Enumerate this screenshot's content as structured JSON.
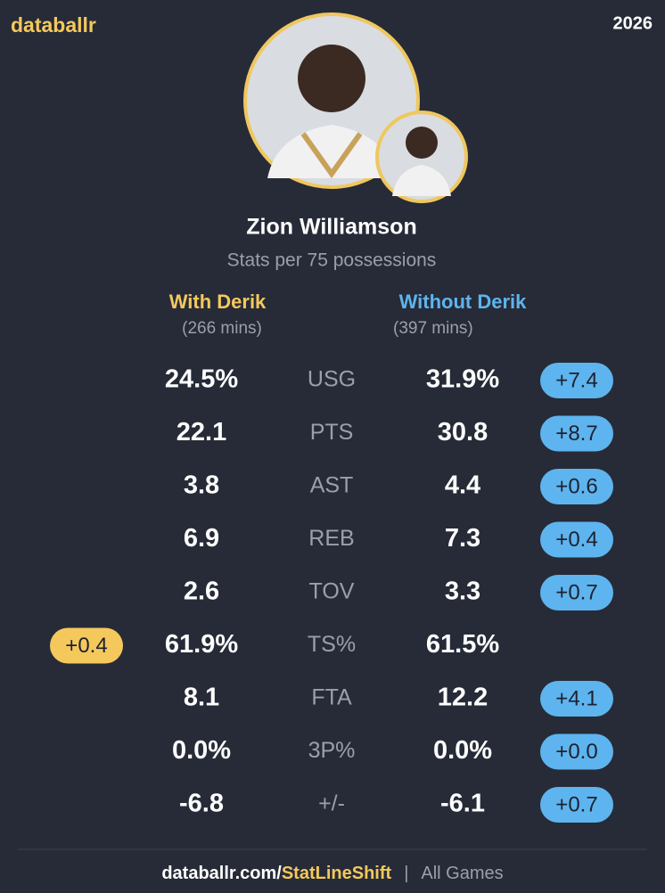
{
  "header": {
    "brand": "databallr",
    "year": "2026"
  },
  "player": {
    "name": "Zion Williamson",
    "subtitle": "Stats per 75 possessions"
  },
  "columns": {
    "with": {
      "label": "With Derik",
      "minutes": "(266 mins)",
      "color": "#f5c85c"
    },
    "without": {
      "label": "Without Derik",
      "minutes": "(397 mins)",
      "color": "#5eb4ee"
    }
  },
  "rows": [
    {
      "with": "24.5%",
      "stat": "USG",
      "without": "31.9%",
      "diff": "+7.4",
      "diff_side": "right"
    },
    {
      "with": "22.1",
      "stat": "PTS",
      "without": "30.8",
      "diff": "+8.7",
      "diff_side": "right"
    },
    {
      "with": "3.8",
      "stat": "AST",
      "without": "4.4",
      "diff": "+0.6",
      "diff_side": "right"
    },
    {
      "with": "6.9",
      "stat": "REB",
      "without": "7.3",
      "diff": "+0.4",
      "diff_side": "right"
    },
    {
      "with": "2.6",
      "stat": "TOV",
      "without": "3.3",
      "diff": "+0.7",
      "diff_side": "right"
    },
    {
      "with": "61.9%",
      "stat": "TS%",
      "without": "61.5%",
      "diff": "+0.4",
      "diff_side": "left"
    },
    {
      "with": "8.1",
      "stat": "FTA",
      "without": "12.2",
      "diff": "+4.1",
      "diff_side": "right"
    },
    {
      "with": "0.0%",
      "stat": "3P%",
      "without": "0.0%",
      "diff": "+0.0",
      "diff_side": "right"
    },
    {
      "with": "-6.8",
      "stat": "+/-",
      "without": "-6.1",
      "diff": "+0.7",
      "diff_side": "right"
    }
  ],
  "footer": {
    "site": "databallr.com/",
    "page": "StatLineShift",
    "separator": "|",
    "filter": "All Games"
  }
}
